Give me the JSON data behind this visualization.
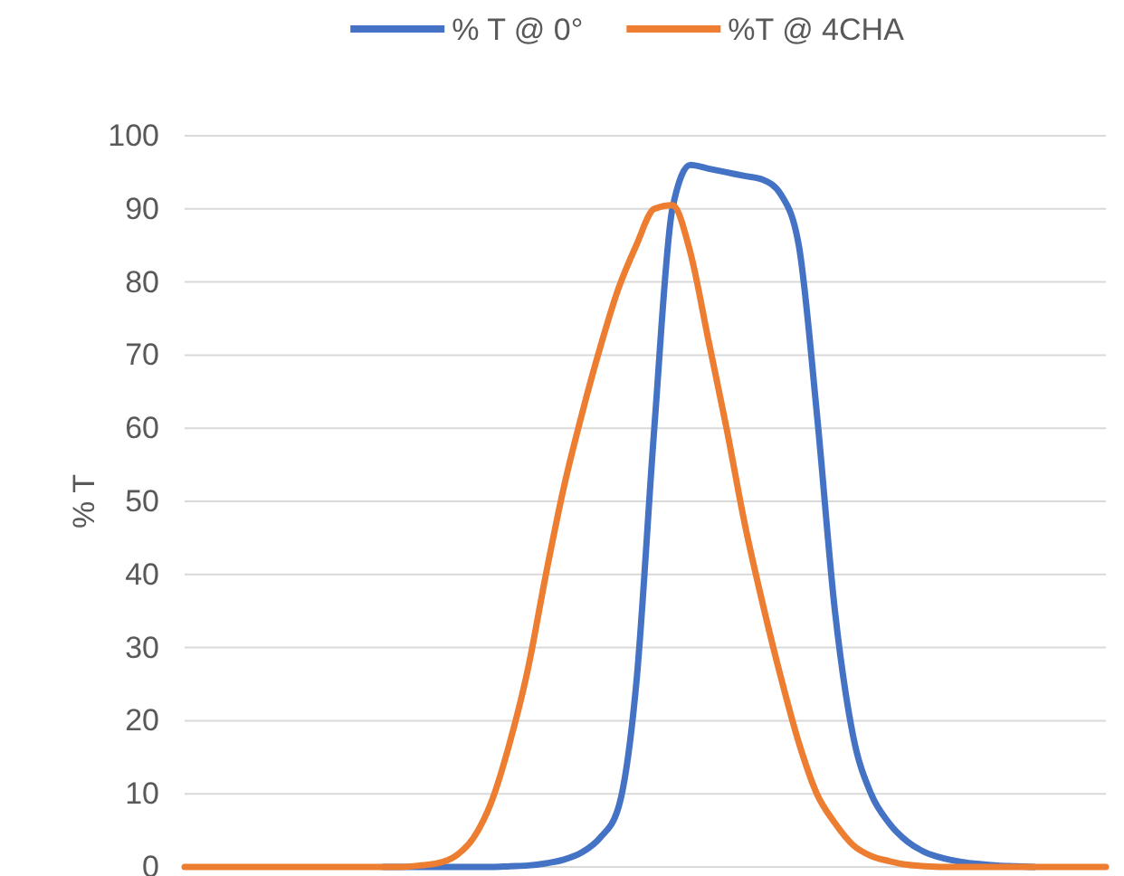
{
  "chart_data": {
    "type": "line",
    "ylabel": "% T",
    "ylim": [
      0,
      100
    ],
    "yticks": [
      0,
      10,
      20,
      30,
      40,
      50,
      60,
      70,
      80,
      90,
      100
    ],
    "grid": "y",
    "legend": "top",
    "marker": "none",
    "line_style": "solid",
    "categories": [
      null,
      null,
      null,
      null,
      null,
      null,
      null,
      null,
      null,
      null,
      null,
      null,
      null,
      null,
      null,
      null,
      null,
      null,
      null,
      null,
      null,
      null,
      null,
      null,
      null,
      null,
      null,
      null,
      null,
      null,
      null,
      null,
      null,
      null,
      null,
      null,
      null,
      null,
      null,
      null,
      null,
      null,
      null,
      null,
      null,
      null,
      null,
      null,
      null,
      null,
      null,
      null
    ],
    "series": [
      {
        "name": "% T @ 0°",
        "color": "#4472c4",
        "values": [
          null,
          null,
          null,
          null,
          null,
          null,
          null,
          null,
          null,
          null,
          null,
          0,
          0,
          0,
          0,
          0,
          0,
          0,
          0.1,
          0.2,
          0.5,
          1,
          2,
          4,
          8,
          25,
          60,
          90,
          96,
          95.5,
          95,
          94.5,
          94,
          92,
          85,
          62,
          35,
          18,
          10,
          6,
          3.5,
          2,
          1.2,
          0.7,
          0.4,
          0.2,
          0.1,
          0,
          null,
          null,
          null,
          null
        ]
      },
      {
        "name": "%T @ 4CHA",
        "color": "#ed7d31",
        "values": [
          0,
          0,
          0,
          0,
          0,
          0,
          0,
          0,
          0,
          0,
          0,
          0,
          0,
          0.2,
          0.5,
          1.5,
          4,
          9,
          17,
          27,
          40,
          52,
          62,
          71,
          79,
          85,
          90,
          90.5,
          84,
          72,
          60,
          47,
          36,
          26,
          17,
          10,
          6,
          3,
          1.5,
          0.8,
          0.3,
          0.1,
          0,
          0,
          0,
          0,
          0,
          0,
          0,
          0,
          0,
          0
        ]
      }
    ]
  }
}
